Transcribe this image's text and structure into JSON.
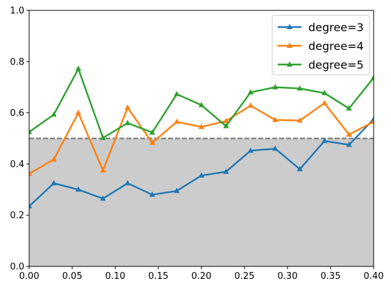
{
  "chart_data": {
    "type": "line",
    "title": "",
    "xlabel": "",
    "ylabel": "",
    "xlim": [
      0.0,
      0.4
    ],
    "ylim": [
      0.0,
      1.0
    ],
    "grid": false,
    "legend_placement": "top-right",
    "x": [
      0.0,
      0.0286,
      0.0571,
      0.0857,
      0.1143,
      0.1429,
      0.1714,
      0.2,
      0.2286,
      0.2571,
      0.2857,
      0.3143,
      0.3429,
      0.3714,
      0.4
    ],
    "x_ticks": [
      "0.00",
      "0.05",
      "0.10",
      "0.15",
      "0.20",
      "0.25",
      "0.30",
      "0.35",
      "0.40"
    ],
    "x_tick_values": [
      0.0,
      0.05,
      0.1,
      0.15,
      0.2,
      0.25,
      0.3,
      0.35,
      0.4
    ],
    "y_ticks": [
      "0.0",
      "0.2",
      "0.4",
      "0.6",
      "0.8",
      "1.0"
    ],
    "y_tick_values": [
      0.0,
      0.2,
      0.4,
      0.6,
      0.8,
      1.0
    ],
    "shaded_region": {
      "y_from": 0.0,
      "y_to": 0.5,
      "color": "#cccccc"
    },
    "reference_line": {
      "y": 0.5,
      "style": "dashed",
      "color": "#808080"
    },
    "series": [
      {
        "name": "degree=3",
        "color": "#1f77b4",
        "marker": "triangle",
        "values": [
          0.235,
          0.325,
          0.3,
          0.265,
          0.325,
          0.28,
          0.295,
          0.355,
          0.37,
          0.452,
          0.46,
          0.38,
          0.49,
          0.475,
          0.575
        ]
      },
      {
        "name": "degree=4",
        "color": "#ff7f0e",
        "marker": "triangle",
        "values": [
          0.362,
          0.418,
          0.6,
          0.375,
          0.62,
          0.483,
          0.565,
          0.545,
          0.568,
          0.628,
          0.572,
          0.57,
          0.638,
          0.515,
          0.565
        ]
      },
      {
        "name": "degree=5",
        "color": "#2ca02c",
        "marker": "triangle",
        "values": [
          0.525,
          0.593,
          0.772,
          0.502,
          0.56,
          0.523,
          0.673,
          0.63,
          0.548,
          0.68,
          0.7,
          0.695,
          0.677,
          0.617,
          0.737
        ]
      }
    ]
  }
}
